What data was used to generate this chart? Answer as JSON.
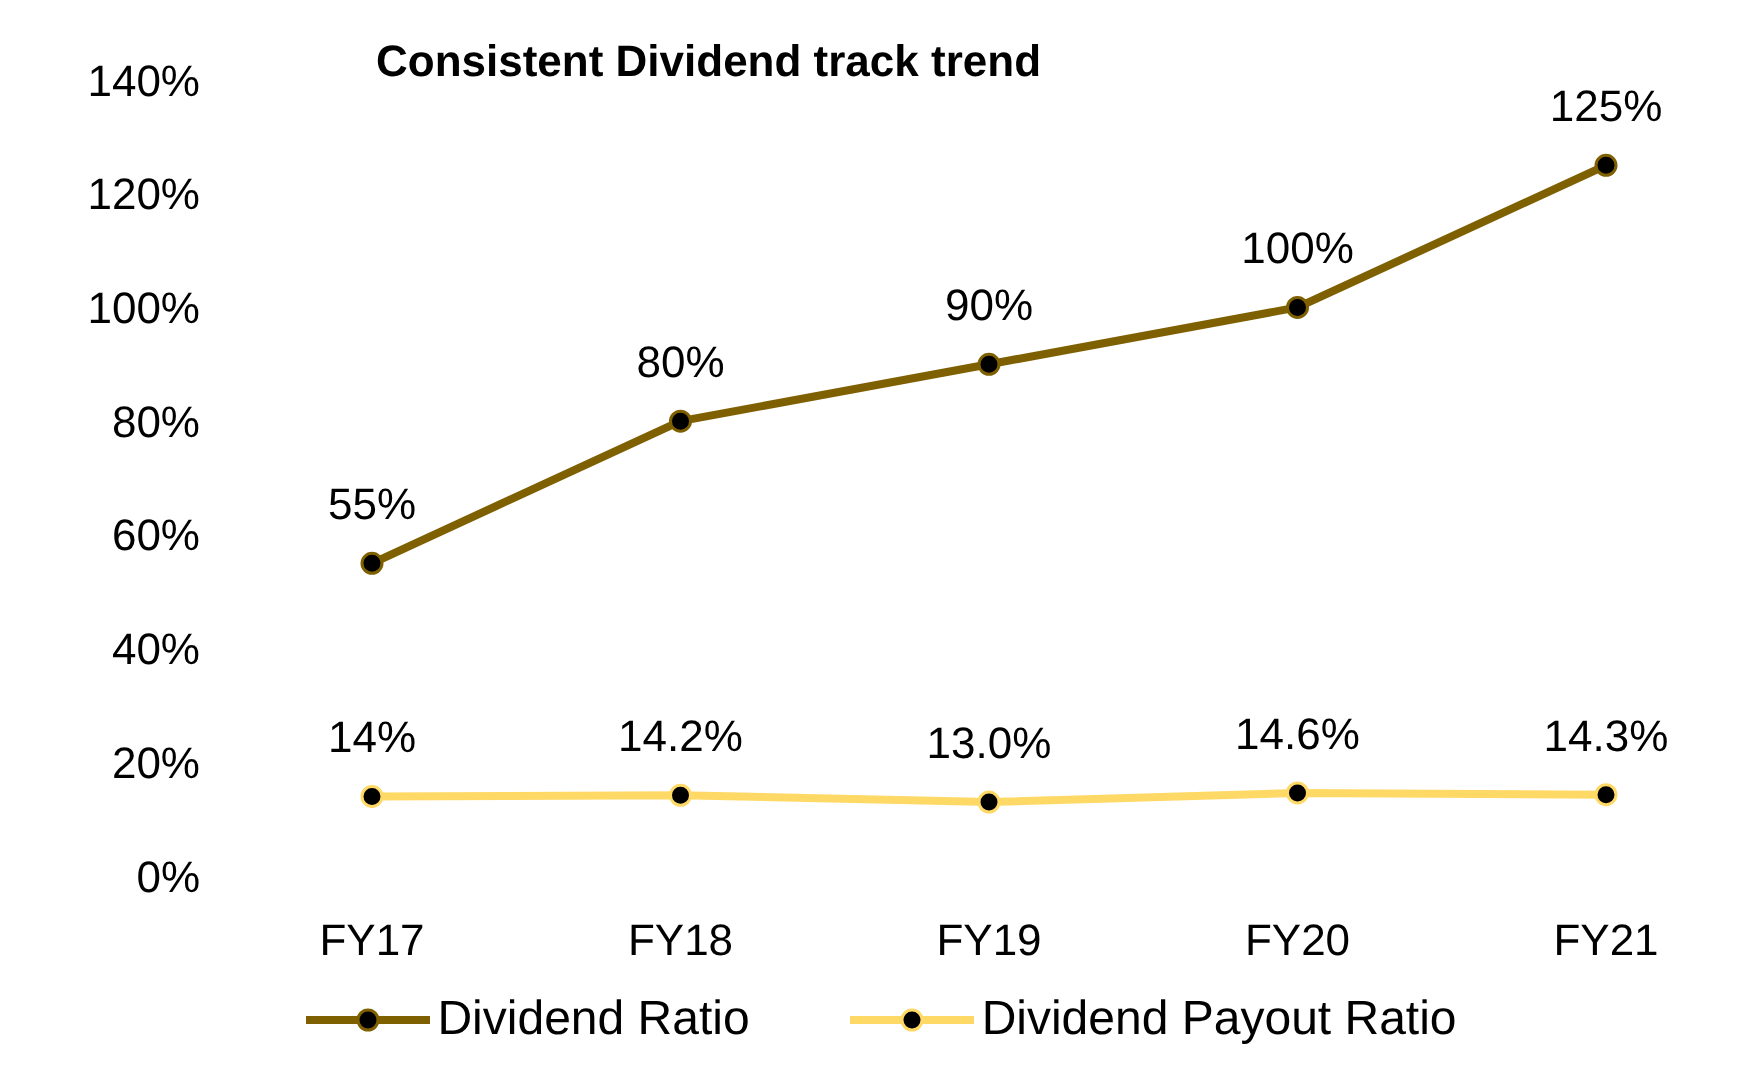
{
  "chart_data": {
    "type": "line",
    "title": "Consistent Dividend track trend",
    "categories": [
      "FY17",
      "FY18",
      "FY19",
      "FY20",
      "FY21"
    ],
    "series": [
      {
        "name": "Dividend Ratio",
        "color": "#7f6000",
        "values": [
          55,
          80,
          90,
          100,
          125
        ],
        "value_labels": [
          "55%",
          "80%",
          "90%",
          "100%",
          "125%"
        ]
      },
      {
        "name": "Dividend Payout Ratio",
        "color": "#ffd966",
        "values": [
          14,
          14.2,
          13.0,
          14.6,
          14.3
        ],
        "value_labels": [
          "14%",
          "14.2%",
          "13.0%",
          "14.6%",
          "14.3%"
        ]
      }
    ],
    "ylim": [
      0,
      140
    ],
    "yticks": [
      {
        "value": 0,
        "label": "0%"
      },
      {
        "value": 20,
        "label": "20%"
      },
      {
        "value": 40,
        "label": "40%"
      },
      {
        "value": 60,
        "label": "60%"
      },
      {
        "value": 80,
        "label": "80%"
      },
      {
        "value": 100,
        "label": "100%"
      },
      {
        "value": 120,
        "label": "120%"
      },
      {
        "value": 140,
        "label": "140%"
      }
    ],
    "grid": false,
    "legend": "bottom",
    "marker": "circle",
    "line_style": "solid"
  }
}
